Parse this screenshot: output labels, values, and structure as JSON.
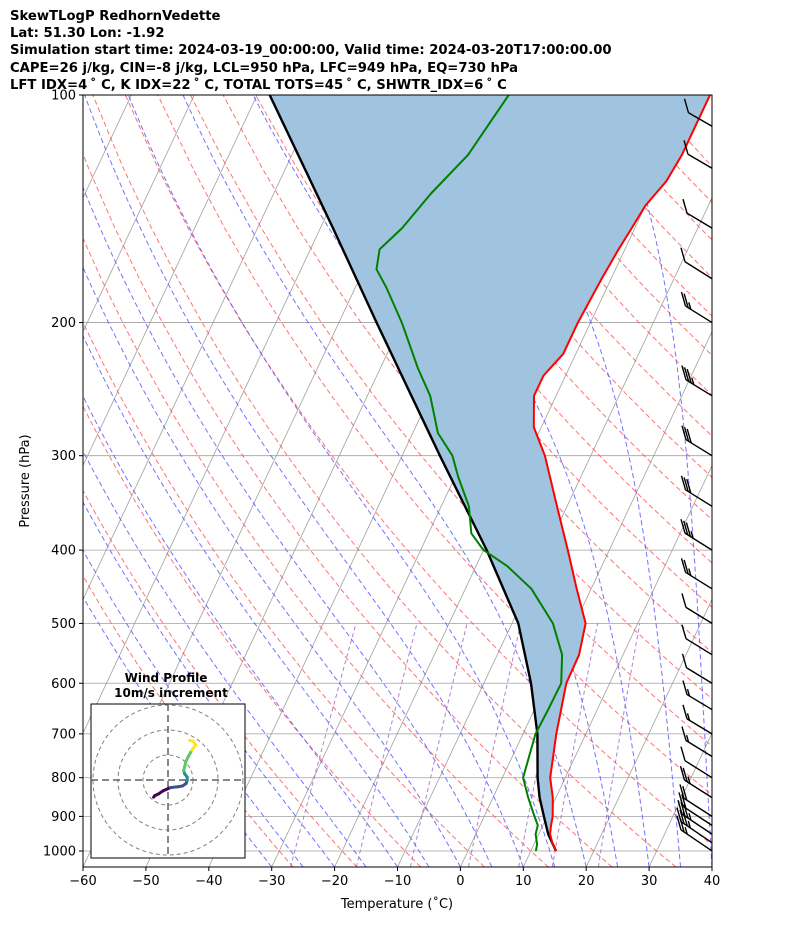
{
  "header": {
    "title": "SkewTLogP RedhornVedette",
    "location": "Lat: 51.30   Lon: -1.92",
    "times": "Simulation start time: 2024-03-19_00:00:00, Valid time: 2024-03-20T17:00:00.00",
    "params1": "CAPE=26 j/kg, CIN=-8 j/kg, LCL=950 hPa, LFC=949 hPa, EQ=730 hPa",
    "params2": "LFT IDX=4 ˚ C, K IDX=22 ˚ C, TOTAL TOTS=45 ˚ C, SHWTR_IDX=6 ˚ C"
  },
  "chart_data": {
    "type": "skewt",
    "xlabel": "Temperature (˚C)",
    "ylabel": "Pressure (hPa)",
    "xlim": [
      -60,
      40
    ],
    "ylim": [
      1050,
      100
    ],
    "xticks": [
      -60,
      -50,
      -40,
      -30,
      -20,
      -10,
      0,
      10,
      20,
      30,
      40
    ],
    "xtick_labels": [
      "−60",
      "−50",
      "−40",
      "−30",
      "−20",
      "−10",
      "0",
      "10",
      "20",
      "30",
      "40"
    ],
    "yticks": [
      1000,
      900,
      800,
      700,
      600,
      500,
      400,
      300,
      200,
      100
    ],
    "grid": true,
    "colors": {
      "temperature": "#ff0000",
      "dewpoint": "#008000",
      "parcel": "#000000",
      "cape_fill": "#a0c4df",
      "dry_adiabats": "#ff5050",
      "moist_adiabats": "#5050ff",
      "mixing_ratio": "#a060c0",
      "isotherms": "#a0a0a0"
    },
    "temperature_profile": [
      [
        1000,
        14
      ],
      [
        975,
        12.8
      ],
      [
        950,
        11.8
      ],
      [
        925,
        11.3
      ],
      [
        900,
        10.9
      ],
      [
        850,
        9.5
      ],
      [
        800,
        7.6
      ],
      [
        700,
        5.3
      ],
      [
        600,
        3.1
      ],
      [
        550,
        3.0
      ],
      [
        500,
        1.7
      ],
      [
        450,
        -2.3
      ],
      [
        400,
        -6.6
      ],
      [
        350,
        -11.6
      ],
      [
        300,
        -17.3
      ],
      [
        275,
        -21.2
      ],
      [
        250,
        -23.5
      ],
      [
        235,
        -23.5
      ],
      [
        220,
        -22
      ],
      [
        200,
        -22
      ],
      [
        175,
        -21.5
      ],
      [
        160,
        -21
      ],
      [
        150,
        -20.5
      ],
      [
        140,
        -20
      ],
      [
        130,
        -18.5
      ],
      [
        120,
        -18
      ],
      [
        110,
        -18
      ],
      [
        100,
        -18
      ]
    ],
    "dewpoint_profile": [
      [
        1000,
        10.8
      ],
      [
        980,
        10.5
      ],
      [
        950,
        9.5
      ],
      [
        925,
        9.2
      ],
      [
        900,
        8.0
      ],
      [
        850,
        5.6
      ],
      [
        800,
        3.3
      ],
      [
        700,
        2.0
      ],
      [
        650,
        2.2
      ],
      [
        600,
        2.3
      ],
      [
        550,
        0.3
      ],
      [
        500,
        -3.5
      ],
      [
        450,
        -9.5
      ],
      [
        420,
        -15
      ],
      [
        400,
        -20
      ],
      [
        380,
        -23.2
      ],
      [
        350,
        -25.6
      ],
      [
        320,
        -29.5
      ],
      [
        300,
        -32
      ],
      [
        280,
        -36
      ],
      [
        250,
        -40
      ],
      [
        230,
        -44
      ],
      [
        200,
        -50
      ],
      [
        180,
        -55
      ],
      [
        170,
        -58
      ],
      [
        160,
        -59
      ],
      [
        150,
        -57
      ],
      [
        135,
        -55
      ],
      [
        120,
        -52
      ],
      [
        100,
        -50
      ]
    ],
    "parcel_profile": [
      [
        1000,
        14
      ],
      [
        950,
        11.5
      ],
      [
        900,
        9.5
      ],
      [
        850,
        7.4
      ],
      [
        800,
        5.6
      ],
      [
        700,
        2.3
      ],
      [
        600,
        -2.5
      ],
      [
        500,
        -9.0
      ],
      [
        400,
        -19.5
      ],
      [
        300,
        -34
      ],
      [
        250,
        -43
      ],
      [
        200,
        -54
      ],
      [
        150,
        -68
      ],
      [
        100,
        -88
      ]
    ],
    "wind_barbs": [
      {
        "p": 1000,
        "speed_kt": 15,
        "dir": 300
      },
      {
        "p": 975,
        "speed_kt": 25,
        "dir": 300
      },
      {
        "p": 950,
        "speed_kt": 25,
        "dir": 290
      },
      {
        "p": 925,
        "speed_kt": 20,
        "dir": 280
      },
      {
        "p": 900,
        "speed_kt": 20,
        "dir": 270
      },
      {
        "p": 850,
        "speed_kt": 15,
        "dir": 265
      },
      {
        "p": 800,
        "speed_kt": 10,
        "dir": 260
      },
      {
        "p": 750,
        "speed_kt": 5,
        "dir": 250
      },
      {
        "p": 700,
        "speed_kt": 5,
        "dir": 240
      },
      {
        "p": 650,
        "speed_kt": 5,
        "dir": 240
      },
      {
        "p": 600,
        "speed_kt": 10,
        "dir": 245
      },
      {
        "p": 550,
        "speed_kt": 10,
        "dir": 250
      },
      {
        "p": 500,
        "speed_kt": 10,
        "dir": 250
      },
      {
        "p": 450,
        "speed_kt": 15,
        "dir": 255
      },
      {
        "p": 400,
        "speed_kt": 25,
        "dir": 260
      },
      {
        "p": 350,
        "speed_kt": 30,
        "dir": 255
      },
      {
        "p": 300,
        "speed_kt": 30,
        "dir": 250
      },
      {
        "p": 250,
        "speed_kt": 25,
        "dir": 250
      },
      {
        "p": 200,
        "speed_kt": 15,
        "dir": 255
      },
      {
        "p": 175,
        "speed_kt": 10,
        "dir": 260
      },
      {
        "p": 150,
        "speed_kt": 10,
        "dir": 240
      },
      {
        "p": 125,
        "speed_kt": 10,
        "dir": 230
      },
      {
        "p": 110,
        "speed_kt": 10,
        "dir": 225
      }
    ],
    "inset": {
      "title_line1": "Wind Profile",
      "title_line2": "10m/s increment",
      "hodograph_uv": [
        [
          -12,
          -9
        ],
        [
          -11,
          -7
        ],
        [
          -8,
          -5
        ],
        [
          -4,
          -1
        ],
        [
          2,
          3
        ],
        [
          8,
          4
        ],
        [
          12,
          5
        ],
        [
          15,
          8
        ],
        [
          16,
          12
        ],
        [
          16,
          16
        ],
        [
          14,
          20
        ],
        [
          13,
          24
        ],
        [
          14,
          30
        ],
        [
          15,
          36
        ],
        [
          17,
          42
        ],
        [
          20,
          50
        ],
        [
          23,
          56
        ],
        [
          21,
          61
        ],
        [
          18,
          62
        ]
      ],
      "hodograph_colors": [
        "#440154",
        "#3b528b",
        "#21918c",
        "#5ec962",
        "#fde725"
      ],
      "ring_step": 10,
      "ring_count": 3
    }
  }
}
